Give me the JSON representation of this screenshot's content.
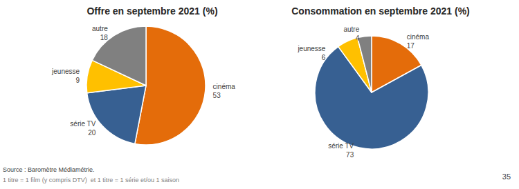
{
  "chart_data": [
    {
      "type": "pie",
      "title": "Offre en septembre 2021 (%)",
      "categories": [
        "cinéma",
        "série TV",
        "jeunesse",
        "autre"
      ],
      "values": [
        53,
        20,
        9,
        18
      ],
      "colors": [
        "#E46C0A",
        "#376092",
        "#FFC000",
        "#808080"
      ],
      "data_labels": true
    },
    {
      "type": "pie",
      "title": "Consommation en septembre 2021 (%)",
      "categories": [
        "cinéma",
        "série TV",
        "jeunesse",
        "autre"
      ],
      "values": [
        17,
        73,
        6,
        4
      ],
      "colors": [
        "#E46C0A",
        "#376092",
        "#FFC000",
        "#808080"
      ],
      "data_labels": true
    }
  ],
  "annotations": [
    "Source : Baromètre Médiamétrie.",
    "1 titre = 1 film (y compris DTV)  et 1 titre = 1 série et/ou 1 saison",
    "35"
  ]
}
